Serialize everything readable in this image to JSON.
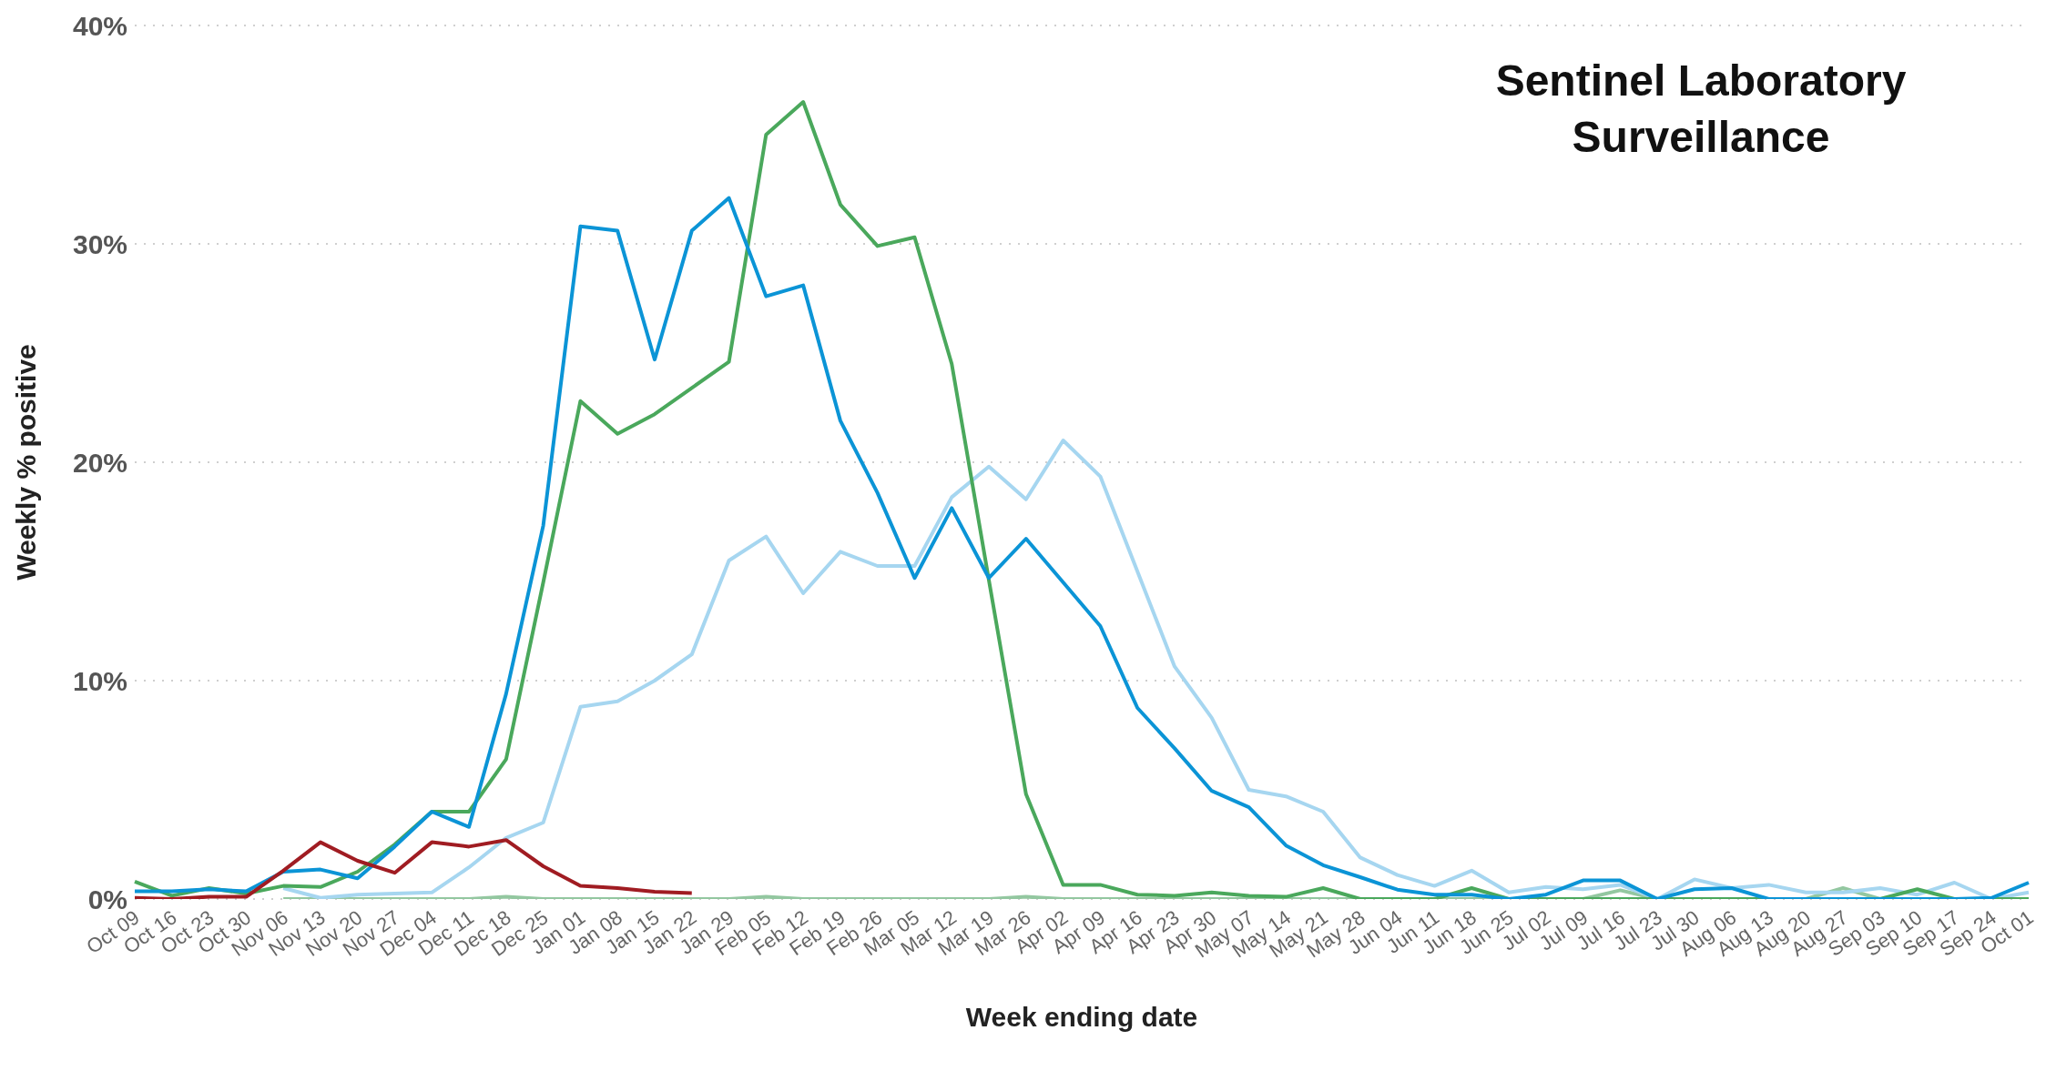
{
  "chart_data": {
    "type": "line",
    "title": "Sentinel Laboratory Surveillance",
    "xlabel": "Week ending date",
    "ylabel": "Weekly % positive",
    "categories": [
      "Oct 09",
      "Oct 16",
      "Oct 23",
      "Oct 30",
      "Nov 06",
      "Nov 13",
      "Nov 20",
      "Nov 27",
      "Dec 04",
      "Dec 11",
      "Dec 18",
      "Dec 25",
      "Jan 01",
      "Jan 08",
      "Jan 15",
      "Jan 22",
      "Jan 29",
      "Feb 05",
      "Feb 12",
      "Feb 19",
      "Feb 26",
      "Mar 05",
      "Mar 12",
      "Mar 19",
      "Mar 26",
      "Apr 02",
      "Apr 09",
      "Apr 16",
      "Apr 23",
      "Apr 30",
      "May 07",
      "May 14",
      "May 21",
      "May 28",
      "Jun 04",
      "Jun 11",
      "Jun 18",
      "Jun 25",
      "Jul 02",
      "Jul 09",
      "Jul 16",
      "Jul 23",
      "Jul 30",
      "Aug 06",
      "Aug 13",
      "Aug 20",
      "Aug 27",
      "Sep 03",
      "Sep 10",
      "Sep 17",
      "Sep 24",
      "Oct 01"
    ],
    "series": [
      {
        "color": "#93c7a0",
        "values": [
          null,
          null,
          null,
          null,
          0,
          0,
          0,
          0,
          0,
          0,
          0.1,
          0,
          0,
          0,
          0,
          0,
          0,
          0.1,
          0,
          0,
          0,
          0,
          0,
          0,
          0.1,
          0,
          0,
          0,
          0,
          0,
          0,
          0,
          0,
          0,
          0,
          0,
          0,
          0,
          0,
          0,
          0.4,
          0,
          0,
          0,
          0,
          0,
          0.5,
          0,
          0,
          0,
          0,
          0
        ]
      },
      {
        "color": "#a6d6f0",
        "values": [
          null,
          null,
          null,
          null,
          0.5,
          0.05,
          0.2,
          0.25,
          0.3,
          1.45,
          2.8,
          3.5,
          8.8,
          9.05,
          10.0,
          11.2,
          15.5,
          16.6,
          14.0,
          15.9,
          15.25,
          15.25,
          18.4,
          19.8,
          18.3,
          21.0,
          19.35,
          15.0,
          10.65,
          8.3,
          5.0,
          4.7,
          4.0,
          1.9,
          1.1,
          0.6,
          1.3,
          0.3,
          0.55,
          0.45,
          0.65,
          0,
          0.9,
          0.5,
          0.65,
          0.3,
          0.3,
          0.5,
          0.2,
          0.75,
          0,
          0.3
        ]
      },
      {
        "color": "#4aa85c",
        "values": [
          0.8,
          0.15,
          0.5,
          0.25,
          0.6,
          0.55,
          1.25,
          2.5,
          4.0,
          4.0,
          6.4,
          14.5,
          22.8,
          21.3,
          22.2,
          23.4,
          24.6,
          35.0,
          36.5,
          31.8,
          29.9,
          30.3,
          24.5,
          14.6,
          4.8,
          0.65,
          0.65,
          0.2,
          0.15,
          0.3,
          0.15,
          0.1,
          0.5,
          0,
          0,
          0,
          0.5,
          0,
          0,
          0,
          0,
          0,
          0,
          0,
          0,
          0,
          0,
          0,
          0.45,
          0,
          0,
          0
        ]
      },
      {
        "color": "#0b94d6",
        "values": [
          0.35,
          0.35,
          0.45,
          0.35,
          1.25,
          1.35,
          0.95,
          2.4,
          4.0,
          3.3,
          9.4,
          17.1,
          30.8,
          30.6,
          24.7,
          30.6,
          32.1,
          27.6,
          28.1,
          21.9,
          18.6,
          14.7,
          17.9,
          14.7,
          16.5,
          14.5,
          12.5,
          8.75,
          6.9,
          4.95,
          4.2,
          2.45,
          1.55,
          1.0,
          0.43,
          0.2,
          0.2,
          0,
          0.2,
          0.85,
          0.85,
          0,
          0.45,
          0.5,
          0,
          0,
          0,
          0,
          0,
          0,
          0.05,
          0.75
        ]
      },
      {
        "color": "#a01c22",
        "values": [
          0.05,
          0,
          0.1,
          0.1,
          1.3,
          2.6,
          1.75,
          1.2,
          2.6,
          2.4,
          2.7,
          1.5,
          0.6,
          0.5,
          0.33,
          0.27,
          null,
          null,
          null,
          null,
          null,
          null,
          null,
          null,
          null,
          null,
          null,
          null,
          null,
          null,
          null,
          null,
          null,
          null,
          null,
          null,
          null,
          null,
          null,
          null,
          null,
          null,
          null,
          null,
          null,
          null,
          null,
          null,
          null,
          null,
          null,
          null
        ]
      }
    ],
    "ylim": [
      0,
      40
    ],
    "yticks": [
      {
        "value": 0,
        "label": "0%"
      },
      {
        "value": 10,
        "label": "10%"
      },
      {
        "value": 20,
        "label": "20%"
      },
      {
        "value": 30,
        "label": "30%"
      },
      {
        "value": 40,
        "label": "40%"
      }
    ],
    "grid": "y",
    "marker": "none"
  }
}
